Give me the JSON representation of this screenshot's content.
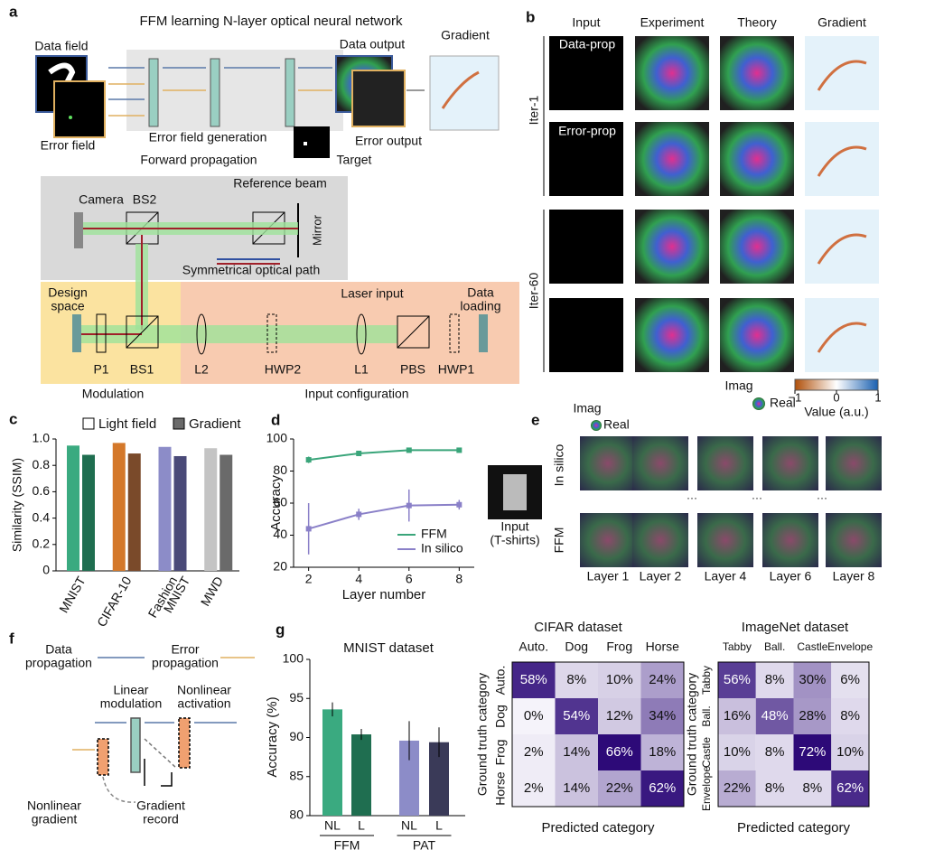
{
  "panel_a": {
    "letter": "a",
    "title": "FFM learning N-layer optical neural network",
    "gradient": "Gradient",
    "data_field": "Data field",
    "data_output": "Data output",
    "error_field": "Error field",
    "error_field_generation": "Error field generation",
    "error_output": "Error output",
    "forward_propagation": "Forward propagation",
    "target": "Target",
    "camera": "Camera",
    "bs2": "BS2",
    "reference_beam": "Reference beam",
    "mirror": "Mirror",
    "symmetrical_path": "Symmetrical optical path",
    "design_space": [
      "Design",
      "space"
    ],
    "laser_input": "Laser input",
    "data_loading": [
      "Data",
      "loading"
    ],
    "p1": "P1",
    "bs1": "BS1",
    "l2": "L2",
    "hwp2": "HWP2",
    "l1": "L1",
    "pbs": "PBS",
    "hwp1": "HWP1",
    "modulation": "Modulation",
    "input_configuration": "Input configuration"
  },
  "panel_b": {
    "letter": "b",
    "columns": [
      "Input",
      "Experiment",
      "Theory",
      "Gradient"
    ],
    "row_labels": [
      "Data-prop",
      "Error-prop"
    ],
    "iterations": [
      "Iter-1",
      "Iter-60"
    ],
    "imag": "Imag",
    "real": "Real",
    "colorbar_label": "Value (a.u.)",
    "colorbar_lim": [
      -1,
      1
    ],
    "colorbar_ticks": [
      {
        "value": -1,
        "label": "−1"
      },
      0,
      1
    ]
  },
  "panel_e": {
    "letter": "e",
    "imag": "Imag",
    "real": "Real",
    "rows": [
      "In silico",
      "FFM"
    ],
    "input": [
      "Input",
      "(T-shirts)"
    ],
    "layers": [
      "Layer 1",
      "Layer 2",
      "Layer 4",
      "Layer 6",
      "Layer 8"
    ],
    "ellipsis": "···"
  },
  "panel_f": {
    "letter": "f",
    "data_propagation": [
      "Data",
      "propagation"
    ],
    "error_propagation": [
      "Error",
      "propagation"
    ],
    "linear_modulation": [
      "Linear",
      "modulation"
    ],
    "nonlinear_activation": [
      "Nonlinear",
      "activation"
    ],
    "nonlinear_gradient": [
      "Nonlinear",
      "gradient"
    ],
    "gradient_record": [
      "Gradient",
      "record"
    ]
  },
  "chart_data": [
    {
      "letter": "c",
      "type": "bar",
      "ylabel": "Similarity (SSIM)",
      "categories": [
        "MNIST",
        "CIFAR-10",
        [
          "Fashion",
          "MNIST"
        ],
        "MWD"
      ],
      "series": [
        {
          "name": "Light field",
          "color": "#ffffff",
          "bar_colors": [
            "#3aaa80",
            "#d4782a",
            "#8c8cc8",
            "#c4c4c4"
          ],
          "values": [
            0.95,
            0.97,
            0.94,
            0.93
          ]
        },
        {
          "name": "Gradient",
          "color": "#6a6a6a",
          "bar_colors": [
            "#1f6e50",
            "#7a4a2a",
            "#4a4a78",
            "#6a6a6a"
          ],
          "values": [
            0.88,
            0.89,
            0.87,
            0.88
          ]
        }
      ],
      "ylim": [
        0,
        1
      ],
      "yticks": [
        0,
        0.2,
        0.4,
        0.6,
        0.8,
        {
          "value": 1,
          "label": "1.0"
        }
      ]
    },
    {
      "letter": "d",
      "type": "line",
      "xlabel": "Layer number",
      "ylabel": "Accuracy",
      "x": [
        2,
        4,
        6,
        8
      ],
      "legend": "lower right",
      "series": [
        {
          "name": "FFM",
          "color": "#3aa57a",
          "values": [
            87,
            91,
            93,
            93
          ],
          "errors": [
            2,
            1,
            1,
            1.5
          ]
        },
        {
          "name": "In silico",
          "color": "#8a80c8",
          "values": [
            44,
            53,
            58.5,
            59
          ],
          "errors": [
            16,
            3.5,
            10,
            3
          ]
        }
      ],
      "xlim": [
        1.4,
        8.6
      ],
      "xticks": [
        2,
        4,
        6,
        8
      ],
      "ylim": [
        20,
        100
      ],
      "yticks": [
        20,
        40,
        60,
        80,
        100
      ]
    },
    {
      "letter": "g",
      "type": "errbar",
      "title": "MNIST dataset",
      "ylabel": "Accuracy (%)",
      "categories": [
        "NL",
        "L",
        "NL",
        "L"
      ],
      "groups": [
        "FFM",
        "PAT"
      ],
      "colors": [
        "#3aaa80",
        "#1f6e50",
        "#8c8cc8",
        "#3a3a58"
      ],
      "values": [
        93.6,
        90.4,
        89.6,
        89.4
      ],
      "errors": [
        0.9,
        0.7,
        2.5,
        1.9
      ],
      "ylim": [
        80,
        100
      ],
      "yticks": [
        80,
        85,
        90,
        95,
        100
      ]
    },
    {
      "type": "heatmap",
      "title": "CIFAR dataset",
      "xlabel": "Predicted category",
      "ylabel": "Ground truth category",
      "columns": [
        "Auto.",
        "Dog",
        "Frog",
        "Horse"
      ],
      "rows": [
        "Auto.",
        "Dog",
        "Frog",
        "Horse"
      ],
      "values": [
        [
          58,
          8,
          10,
          24
        ],
        [
          0,
          54,
          12,
          34
        ],
        [
          2,
          14,
          66,
          18
        ],
        [
          2,
          14,
          22,
          62
        ]
      ],
      "value_labels": [
        [
          "58%",
          "8%",
          "10%",
          "24%"
        ],
        [
          "0%",
          "54%",
          "12%",
          "34%"
        ],
        [
          "2%",
          "14%",
          "66%",
          "18%"
        ],
        [
          "2%",
          "14%",
          "22%",
          "62%"
        ]
      ]
    },
    {
      "type": "heatmap",
      "title": "ImageNet dataset",
      "xlabel": "Predicted category",
      "ylabel": "Ground truth category",
      "columns": [
        "Tabby",
        "Ball.",
        "Castle",
        "Envelope"
      ],
      "rows": [
        "Tabby",
        "Ball.",
        "Castle",
        "Envelope"
      ],
      "values": [
        [
          56,
          8,
          30,
          6
        ],
        [
          16,
          48,
          28,
          8
        ],
        [
          10,
          8,
          72,
          10
        ],
        [
          22,
          8,
          8,
          62
        ]
      ],
      "value_labels": [
        [
          "56%",
          "8%",
          "30%",
          "6%"
        ],
        [
          "16%",
          "48%",
          "28%",
          "8%"
        ],
        [
          "10%",
          "8%",
          "72%",
          "10%"
        ],
        [
          "22%",
          "8%",
          "8%",
          "62%"
        ]
      ]
    }
  ]
}
